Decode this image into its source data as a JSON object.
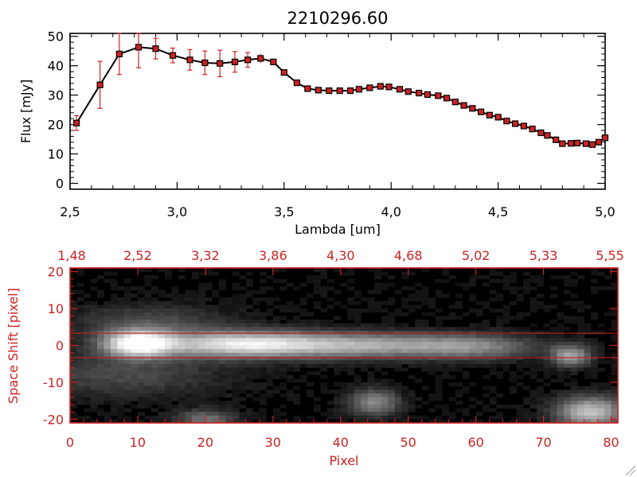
{
  "chart_data": [
    {
      "type": "line",
      "title": "2210296.60",
      "xlabel": "Lambda [um]",
      "ylabel": "Flux [mJy]",
      "xlim": [
        2.5,
        5.0
      ],
      "ylim": [
        -2,
        51
      ],
      "x_ticks": [
        "2,5",
        "3,0",
        "3,5",
        "4,0",
        "4,5",
        "5,0"
      ],
      "x_tick_values": [
        2.5,
        3.0,
        3.5,
        4.0,
        4.5,
        5.0
      ],
      "y_ticks": [
        "0",
        "10",
        "20",
        "30",
        "40",
        "50"
      ],
      "y_tick_values": [
        0,
        10,
        20,
        30,
        40,
        50
      ],
      "grid": false,
      "line_color": "#000000",
      "marker_color": "#cc2222",
      "errorbar_color": "#cc2222",
      "series": [
        {
          "x": [
            2.53,
            2.64,
            2.73,
            2.82,
            2.9,
            2.98,
            3.06,
            3.13,
            3.2,
            3.27,
            3.33,
            3.39,
            3.45,
            3.5,
            3.56,
            3.61,
            3.66,
            3.71,
            3.76,
            3.81,
            3.85,
            3.9,
            3.95,
            3.99,
            4.04,
            4.08,
            4.13,
            4.17,
            4.22,
            4.26,
            4.3,
            4.34,
            4.38,
            4.42,
            4.46,
            4.5,
            4.54,
            4.58,
            4.62,
            4.66,
            4.7,
            4.73,
            4.77,
            4.8,
            4.84,
            4.87,
            4.91,
            4.94,
            4.97,
            5.0
          ],
          "y": [
            20.5,
            33.5,
            44.0,
            46.3,
            45.8,
            43.5,
            42.0,
            41.0,
            40.8,
            41.3,
            42.0,
            42.5,
            41.3,
            37.7,
            34.2,
            32.2,
            31.7,
            31.5,
            31.5,
            31.5,
            32.0,
            32.5,
            33.0,
            32.8,
            32.0,
            31.2,
            30.7,
            30.2,
            29.8,
            29.0,
            27.7,
            26.5,
            25.5,
            24.3,
            23.2,
            22.5,
            21.2,
            20.3,
            19.5,
            18.5,
            17.2,
            16.3,
            14.8,
            13.5,
            13.6,
            13.7,
            13.5,
            13.2,
            14.0,
            15.5
          ],
          "yerr": [
            2.5,
            8.0,
            7.0,
            7.0,
            3.5,
            2.5,
            3.5,
            4.0,
            4.5,
            3.5,
            2.5,
            1.5,
            0.8,
            0.8,
            0.8,
            0.6,
            0.6,
            0.6,
            0.6,
            0.6,
            0.6,
            0.6,
            0.6,
            0.6,
            0.6,
            0.6,
            0.6,
            0.6,
            0.6,
            0.6,
            0.6,
            0.6,
            0.6,
            0.6,
            0.6,
            0.6,
            0.6,
            0.6,
            0.6,
            0.6,
            0.6,
            0.6,
            0.6,
            0.6,
            0.6,
            0.6,
            0.6,
            0.6,
            0.6,
            1.0
          ]
        }
      ]
    },
    {
      "type": "heatmap",
      "title": "",
      "xlabel": "Pixel",
      "ylabel": "Space Shift [pixel]",
      "xlim": [
        0,
        81
      ],
      "ylim": [
        -21,
        21
      ],
      "x_ticks": [
        "0",
        "10",
        "20",
        "30",
        "40",
        "50",
        "60",
        "70",
        "80"
      ],
      "x_tick_values": [
        0,
        10,
        20,
        30,
        40,
        50,
        60,
        70,
        80
      ],
      "y_ticks": [
        "-20",
        "-10",
        "0",
        "10",
        "20"
      ],
      "y_tick_values": [
        -20,
        -10,
        0,
        10,
        20
      ],
      "top_axis_ticks": [
        "1,48",
        "2,52",
        "3,32",
        "3,86",
        "4,30",
        "4,68",
        "5,02",
        "5,33",
        "5,55"
      ],
      "top_axis_tick_values": [
        0,
        10,
        20,
        30,
        40,
        50,
        60,
        70,
        80
      ],
      "extraction_lines_y": [
        3.3,
        -3.3
      ],
      "axis_color": "#cc2222",
      "colormap": "grayscale",
      "sources": [
        {
          "x": 10,
          "y": 0.5,
          "peak": 1.0,
          "width_x": 3.5,
          "width_y": 2.5
        },
        {
          "x": 25,
          "y": 0.3,
          "peak": 0.8,
          "width_x": 9,
          "width_y": 2.4
        },
        {
          "x": 45,
          "y": 0.0,
          "peak": 0.55,
          "width_x": 11,
          "width_y": 2.3
        },
        {
          "x": 60,
          "y": -0.5,
          "peak": 0.3,
          "width_x": 6,
          "width_y": 2.2
        },
        {
          "x": 74,
          "y": -2.8,
          "peak": 0.55,
          "width_x": 2,
          "width_y": 2.0
        },
        {
          "x": 45,
          "y": -15.5,
          "peak": 0.45,
          "width_x": 2.5,
          "width_y": 2.5
        },
        {
          "x": 77,
          "y": -18.0,
          "peak": 0.7,
          "width_x": 3.5,
          "width_y": 2.8
        },
        {
          "x": 20,
          "y": -20.0,
          "peak": 0.35,
          "width_x": 3,
          "width_y": 1.8
        },
        {
          "x": 12,
          "y": 6.5,
          "peak": 0.2,
          "width_x": 8,
          "width_y": 3
        },
        {
          "x": 8,
          "y": -8,
          "peak": 0.2,
          "width_x": 10,
          "width_y": 4
        }
      ]
    }
  ]
}
